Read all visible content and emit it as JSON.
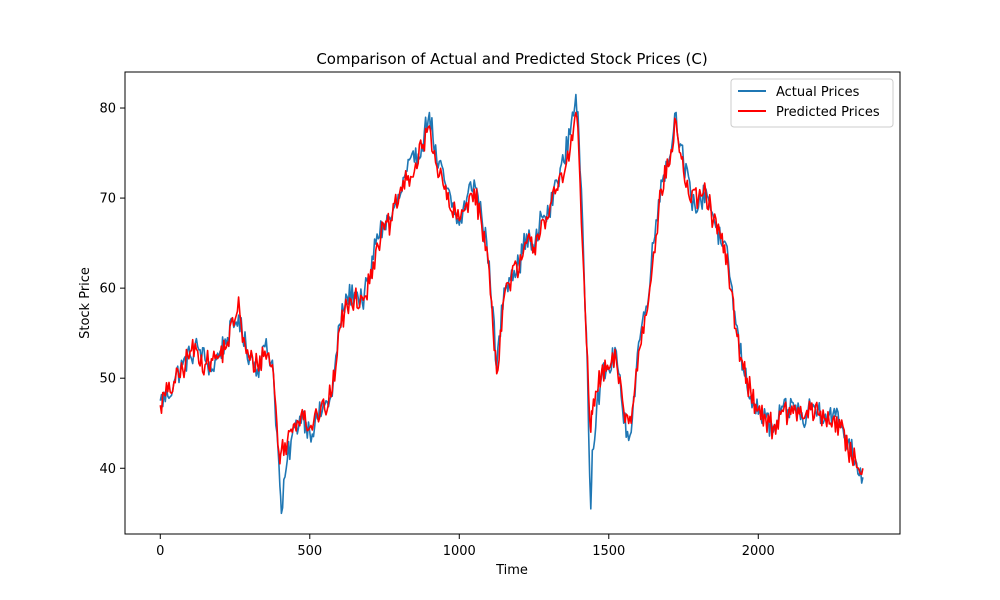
{
  "chart_data": {
    "type": "line",
    "title": "Comparison of Actual and Predicted Stock Prices (C)",
    "xlabel": "Time",
    "ylabel": "Stock Price",
    "xlim": [
      -118,
      2474
    ],
    "ylim": [
      32.7,
      84
    ],
    "xticks": [
      0,
      500,
      1000,
      1500,
      2000
    ],
    "yticks": [
      40,
      50,
      60,
      70,
      80
    ],
    "grid": false,
    "legend_position": "top-right",
    "series": [
      {
        "name": "Actual Prices",
        "color": "#1f77b4",
        "x": [
          0,
          25,
          50,
          75,
          100,
          125,
          150,
          175,
          200,
          225,
          250,
          262,
          275,
          300,
          325,
          350,
          375,
          390,
          400,
          405,
          425,
          450,
          475,
          500,
          525,
          550,
          575,
          600,
          625,
          650,
          675,
          700,
          725,
          750,
          775,
          800,
          825,
          850,
          875,
          900,
          925,
          950,
          975,
          1000,
          1025,
          1050,
          1075,
          1100,
          1125,
          1150,
          1175,
          1200,
          1225,
          1250,
          1275,
          1300,
          1325,
          1350,
          1375,
          1390,
          1400,
          1425,
          1440,
          1445,
          1460,
          1475,
          1500,
          1525,
          1550,
          1575,
          1600,
          1625,
          1650,
          1675,
          1700,
          1725,
          1740,
          1750,
          1775,
          1800,
          1825,
          1850,
          1875,
          1900,
          1925,
          1950,
          1975,
          2000,
          2025,
          2050,
          2075,
          2100,
          2125,
          2150,
          2175,
          2200,
          2225,
          2250,
          2275,
          2300,
          2325,
          2350
        ],
        "y": [
          47.5,
          48,
          50,
          51.5,
          52.5,
          53.5,
          52,
          51,
          53,
          54.5,
          56,
          57,
          54.5,
          52.5,
          51,
          53.5,
          52,
          44,
          38,
          35,
          41,
          44.5,
          46,
          44,
          45.5,
          47,
          48,
          56,
          59,
          59.5,
          58.5,
          61,
          66,
          67,
          68,
          70,
          73,
          74,
          76,
          79.5,
          74,
          72,
          69,
          67,
          70,
          72,
          68,
          63,
          51,
          60,
          62,
          62.5,
          66,
          64,
          68,
          68,
          72,
          74,
          78.5,
          81.5,
          77,
          55,
          35.5,
          42,
          47,
          50,
          51,
          53,
          45,
          44,
          54,
          58,
          65,
          72,
          74,
          79.5,
          76,
          74,
          70,
          69,
          71,
          68,
          65,
          63,
          56,
          51,
          48,
          46,
          45.5,
          44,
          46,
          46.5,
          47,
          45,
          47,
          46.5,
          46,
          46,
          45,
          43,
          41,
          39
        ]
      },
      {
        "name": "Predicted Prices",
        "color": "#ff0000",
        "x": [
          0,
          25,
          50,
          75,
          100,
          125,
          150,
          175,
          200,
          225,
          250,
          262,
          275,
          300,
          325,
          350,
          375,
          390,
          400,
          405,
          425,
          450,
          475,
          500,
          525,
          550,
          575,
          600,
          625,
          650,
          675,
          700,
          725,
          750,
          775,
          800,
          825,
          850,
          875,
          900,
          925,
          950,
          975,
          1000,
          1025,
          1050,
          1075,
          1100,
          1125,
          1150,
          1175,
          1200,
          1225,
          1250,
          1275,
          1300,
          1325,
          1350,
          1375,
          1390,
          1400,
          1425,
          1440,
          1445,
          1460,
          1475,
          1500,
          1525,
          1550,
          1575,
          1600,
          1625,
          1650,
          1675,
          1700,
          1725,
          1740,
          1750,
          1775,
          1800,
          1825,
          1850,
          1875,
          1900,
          1925,
          1950,
          1975,
          2000,
          2025,
          2050,
          2075,
          2100,
          2125,
          2150,
          2175,
          2200,
          2225,
          2250,
          2275,
          2300,
          2325,
          2350
        ],
        "y": [
          47,
          48.5,
          49.5,
          51,
          53,
          53,
          51.5,
          52,
          52.5,
          54,
          56.5,
          59,
          54,
          52,
          51.5,
          53,
          51.5,
          45,
          40.5,
          42,
          43,
          45,
          46.5,
          44.5,
          46,
          46.5,
          48.5,
          55.5,
          58,
          59,
          59,
          60.5,
          65,
          66.5,
          67.5,
          70.5,
          72,
          73,
          75.5,
          78,
          73.5,
          71,
          68.5,
          67.5,
          69.5,
          71,
          67,
          62,
          50.5,
          59,
          61.5,
          62,
          65,
          64.5,
          67.5,
          68,
          71,
          72.5,
          77,
          79.5,
          75,
          54,
          44,
          46,
          48.5,
          50.5,
          51,
          52,
          46.5,
          45,
          53,
          57,
          64,
          71,
          73.5,
          78.5,
          75,
          73,
          69.5,
          70,
          70.5,
          67.5,
          65.5,
          62,
          55.5,
          51,
          48.5,
          46.5,
          45.5,
          44.5,
          46,
          46,
          46.5,
          45.5,
          46.5,
          46,
          45.5,
          45.5,
          44.5,
          42,
          41,
          40
        ]
      }
    ]
  }
}
